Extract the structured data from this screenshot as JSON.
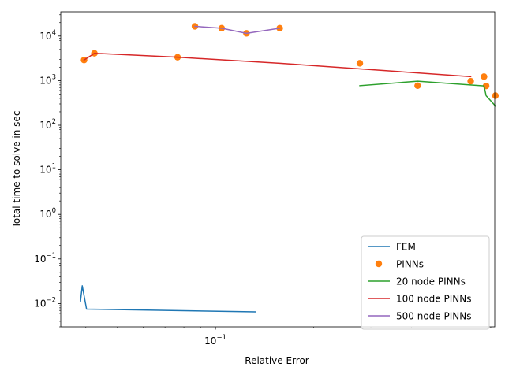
{
  "chart_data": {
    "type": "line",
    "xscale": "log",
    "yscale": "log",
    "xlabel": "Relative Error",
    "ylabel": "Total time to solve in sec",
    "xlim": [
      0.0335,
      0.72
    ],
    "ylim": [
      0.003,
      35000
    ],
    "x_ticks": [
      {
        "value": 0.1,
        "label": "10^-1"
      }
    ],
    "y_ticks": [
      {
        "value": 0.01,
        "label": "10^-2"
      },
      {
        "value": 0.1,
        "label": "10^-1"
      },
      {
        "value": 1,
        "label": "10^0"
      },
      {
        "value": 10,
        "label": "10^1"
      },
      {
        "value": 100,
        "label": "10^2"
      },
      {
        "value": 1000,
        "label": "10^3"
      },
      {
        "value": 10000,
        "label": "10^4"
      }
    ],
    "legend_position": "lower right",
    "series": [
      {
        "name": "FEM",
        "style": "line",
        "color": "#1f77b4",
        "x": [
          0.0385,
          0.039,
          0.0402,
          0.1325
        ],
        "y": [
          0.011,
          0.025,
          0.0075,
          0.0065
        ]
      },
      {
        "name": "PINNs",
        "style": "marker",
        "color": "#ff7f0e",
        "x": [
          0.0395,
          0.0425,
          0.0765,
          0.0865,
          0.1045,
          0.1245,
          0.1575,
          0.2775,
          0.4175,
          0.6075,
          0.6675,
          0.6775,
          0.7235
        ],
        "y": [
          2900,
          4100,
          3350,
          16500,
          15000,
          11500,
          15000,
          2450,
          770,
          970,
          1230,
          760,
          460
        ]
      },
      {
        "name": "20 node PINNs",
        "style": "line",
        "color": "#2ca02c",
        "x": [
          0.2775,
          0.4175,
          0.6675,
          0.6775,
          0.7235
        ],
        "y": [
          770,
          970,
          760,
          460,
          270
        ]
      },
      {
        "name": "100 node PINNs",
        "style": "line",
        "color": "#d62728",
        "x": [
          0.0395,
          0.0425,
          0.0765,
          0.1575,
          0.6075
        ],
        "y": [
          2900,
          4100,
          3350,
          2450,
          1230
        ]
      },
      {
        "name": "500 node PINNs",
        "style": "line",
        "color": "#9467bd",
        "x": [
          0.0865,
          0.1045,
          0.1245,
          0.1575
        ],
        "y": [
          16500,
          15000,
          11500,
          15000
        ]
      }
    ]
  }
}
